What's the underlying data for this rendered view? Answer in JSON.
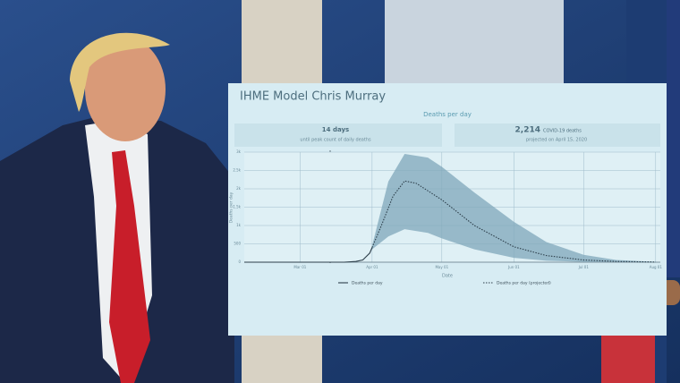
{
  "board": {
    "title": "IHME Model Chris Murray",
    "left_stat": {
      "value": "14 days",
      "caption": "until peak count of daily deaths"
    },
    "right_stat": {
      "value": "2,214",
      "unit": "COVID-19 deaths",
      "caption": "projected on April 15, 2020"
    }
  },
  "chart_data": {
    "type": "line",
    "title": "Deaths per day",
    "xlabel": "Date",
    "ylabel": "Deaths per day",
    "xlim": [
      "Feb 06",
      "Aug 03"
    ],
    "xticks": [
      "Mar 01",
      "Apr 01",
      "May 01",
      "Jun 01",
      "Jul 01",
      "Aug 01"
    ],
    "ylim": [
      0,
      3000
    ],
    "yticks": [
      0,
      500,
      {
        "value": 1000,
        "label": "1k"
      },
      {
        "value": 1500,
        "label": "1.5k"
      },
      {
        "value": 2000,
        "label": "2k"
      },
      {
        "value": 2500,
        "label": "2.5k"
      },
      {
        "value": 3000,
        "label": "3k"
      }
    ],
    "grid": true,
    "series": [
      {
        "name": "Deaths per day",
        "color": "#2c3e4a",
        "style": "solid",
        "x": [
          "Feb 06",
          "Mar 20",
          "Mar 25",
          "Mar 28",
          "Mar 31",
          "Apr 01"
        ],
        "values": [
          0,
          0,
          20,
          60,
          250,
          400
        ]
      },
      {
        "name": "Deaths per day (projected)",
        "color": "#2c3e4a",
        "style": "dotted",
        "x": [
          "Apr 01",
          "Apr 05",
          "Apr 10",
          "Apr 15",
          "Apr 20",
          "May 01",
          "May 15",
          "Jun 01",
          "Jun 15",
          "Jul 01",
          "Jul 15",
          "Aug 01"
        ],
        "values": [
          400,
          1000,
          1800,
          2214,
          2150,
          1700,
          1000,
          420,
          180,
          60,
          20,
          5
        ]
      }
    ],
    "interval": {
      "color": "#7fa7ba",
      "x": [
        "Apr 01",
        "Apr 08",
        "Apr 15",
        "Apr 25",
        "May 01",
        "May 15",
        "Jun 01",
        "Jun 15",
        "Jul 01",
        "Jul 15",
        "Aug 01"
      ],
      "lower": [
        350,
        700,
        900,
        800,
        650,
        350,
        120,
        40,
        10,
        5,
        0
      ],
      "upper": [
        450,
        2200,
        2950,
        2850,
        2600,
        1900,
        1100,
        550,
        200,
        60,
        10
      ]
    }
  }
}
